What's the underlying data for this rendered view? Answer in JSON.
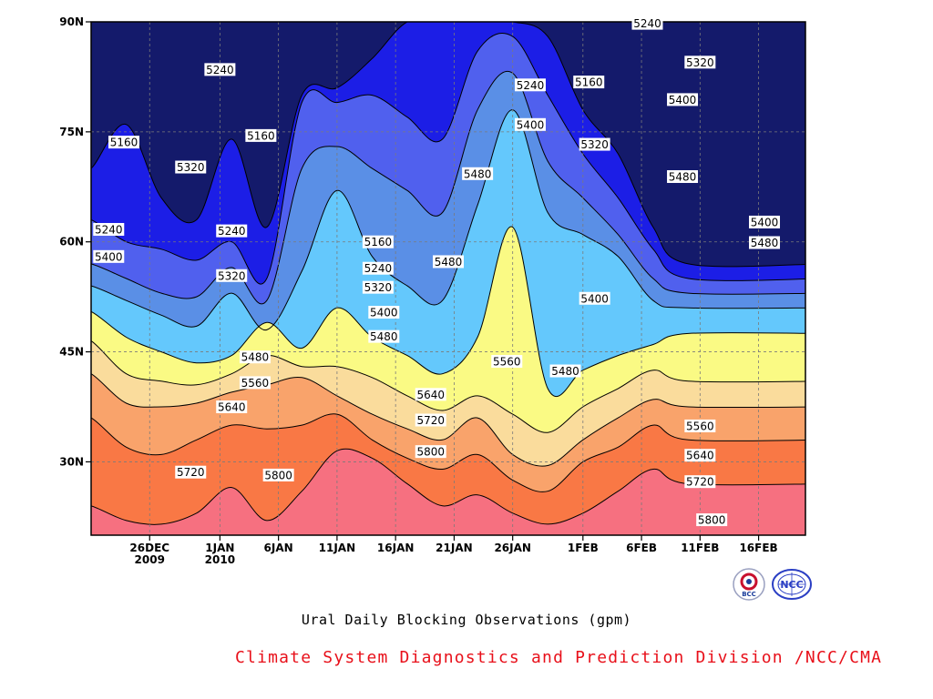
{
  "chart_data": {
    "type": "heatmap",
    "subtype": "filled contour (time-latitude)",
    "title": "Ural Daily Blocking Observations (gpm)",
    "xlabel": "",
    "ylabel": "",
    "x_range": [
      "2009-12-21",
      "2010-02-20"
    ],
    "ylim": [
      20,
      90
    ],
    "y_ticks": [
      "30N",
      "45N",
      "60N",
      "75N",
      "90N"
    ],
    "x_ticks": [
      {
        "label": "26DEC",
        "sub": "2009"
      },
      {
        "label": "1JAN",
        "sub": "2010"
      },
      {
        "label": "6JAN",
        "sub": ""
      },
      {
        "label": "11JAN",
        "sub": ""
      },
      {
        "label": "16JAN",
        "sub": ""
      },
      {
        "label": "21JAN",
        "sub": ""
      },
      {
        "label": "26JAN",
        "sub": ""
      },
      {
        "label": "1FEB",
        "sub": ""
      },
      {
        "label": "6FEB",
        "sub": ""
      },
      {
        "label": "11FEB",
        "sub": ""
      },
      {
        "label": "16FEB",
        "sub": ""
      }
    ],
    "contour_levels": [
      5160,
      5240,
      5320,
      5400,
      5480,
      5560,
      5640,
      5720,
      5800
    ],
    "level_colors": [
      "#141a6b",
      "#1c1ee6",
      "#5060ee",
      "#5a8fe6",
      "#64c8fc",
      "#fafa84",
      "#fadc9c",
      "#f9a36b",
      "#f97845",
      "#f67080"
    ],
    "grid": "dashed, major ticks",
    "contour_lines": [
      {
        "level": 5800,
        "latitudes": [
          24.0,
          22.0,
          21.5,
          23.0,
          26.5,
          22.0,
          26.0,
          31.5,
          30.5,
          27.0,
          24.0,
          25.5,
          23.0,
          21.5,
          23.0,
          26.0,
          29.0,
          27.0
        ]
      },
      {
        "level": 5720,
        "latitudes": [
          36.0,
          32.0,
          31.0,
          33.0,
          35.0,
          34.5,
          35.0,
          36.5,
          33.0,
          30.5,
          29.0,
          31.0,
          27.5,
          26.0,
          30.0,
          32.0,
          35.0,
          33.0
        ]
      },
      {
        "level": 5640,
        "latitudes": [
          42.0,
          38.0,
          37.5,
          38.0,
          39.5,
          40.5,
          41.5,
          39.0,
          36.5,
          34.5,
          33.0,
          36.0,
          31.0,
          29.5,
          33.0,
          36.0,
          38.5,
          37.5
        ]
      },
      {
        "level": 5560,
        "latitudes": [
          46.5,
          42.0,
          41.0,
          40.5,
          42.0,
          44.5,
          43.0,
          43.0,
          41.5,
          39.0,
          37.0,
          39.0,
          36.5,
          34.0,
          37.5,
          40.0,
          42.5,
          41.0
        ]
      },
      {
        "level": 5480,
        "latitudes": [
          50.5,
          47.0,
          45.0,
          43.5,
          44.5,
          49.0,
          45.5,
          51.0,
          47.0,
          44.5,
          42.0,
          47.0,
          62.0,
          40.0,
          42.5,
          44.5,
          46.0,
          47.5
        ]
      },
      {
        "level": 5400,
        "latitudes": [
          54.0,
          52.0,
          50.0,
          48.5,
          53.0,
          48.0,
          56.0,
          67.0,
          58.0,
          54.0,
          52.0,
          65.0,
          78.0,
          64.0,
          61.0,
          58.0,
          52.0,
          51.0
        ]
      },
      {
        "level": 5320,
        "latitudes": [
          57.0,
          55.0,
          53.0,
          52.5,
          56.5,
          52.0,
          70.0,
          73.0,
          70.0,
          67.0,
          64.0,
          78.0,
          83.0,
          71.0,
          66.0,
          61.0,
          55.0,
          53.0
        ]
      },
      {
        "level": 5240,
        "latitudes": [
          63.0,
          60.0,
          59.0,
          57.5,
          60.0,
          55.0,
          79.0,
          79.0,
          80.0,
          77.0,
          74.0,
          86.0,
          88.0,
          80.0,
          72.0,
          66.0,
          59.0,
          55.0
        ]
      },
      {
        "level": 5160,
        "latitudes": [
          70.0,
          76.0,
          66.0,
          63.0,
          74.0,
          62.0,
          80.0,
          81.0,
          85.0,
          90.0,
          90.0,
          90.0,
          90.0,
          88.0,
          78.0,
          72.0,
          62.0,
          57.0
        ]
      }
    ],
    "contour_x_days": [
      0,
      3,
      6,
      9,
      12,
      15,
      18,
      21,
      24,
      27,
      30,
      33,
      36,
      39,
      42,
      45,
      48,
      51
    ]
  },
  "contour_labels": [
    {
      "value": "5160",
      "date_offset": 2.8,
      "lat": 73.6
    },
    {
      "value": "5240",
      "date_offset": 1.5,
      "lat": 61.7
    },
    {
      "value": "5400",
      "date_offset": 1.5,
      "lat": 58.0
    },
    {
      "value": "5240",
      "date_offset": 11.0,
      "lat": 83.5
    },
    {
      "value": "5320",
      "date_offset": 8.5,
      "lat": 70.2
    },
    {
      "value": "5160",
      "date_offset": 14.5,
      "lat": 74.5
    },
    {
      "value": "5240",
      "date_offset": 12.0,
      "lat": 61.5
    },
    {
      "value": "5320",
      "date_offset": 12.0,
      "lat": 55.4
    },
    {
      "value": "5480",
      "date_offset": 14.0,
      "lat": 44.3
    },
    {
      "value": "5560",
      "date_offset": 14.0,
      "lat": 40.8
    },
    {
      "value": "5640",
      "date_offset": 12.0,
      "lat": 37.5
    },
    {
      "value": "5720",
      "date_offset": 8.5,
      "lat": 28.6
    },
    {
      "value": "5800",
      "date_offset": 16.0,
      "lat": 28.2
    },
    {
      "value": "5160",
      "date_offset": 24.5,
      "lat": 60.0
    },
    {
      "value": "5240",
      "date_offset": 24.5,
      "lat": 56.4
    },
    {
      "value": "5320",
      "date_offset": 24.5,
      "lat": 53.8
    },
    {
      "value": "5400",
      "date_offset": 25.0,
      "lat": 50.4
    },
    {
      "value": "5480",
      "date_offset": 25.0,
      "lat": 47.1
    },
    {
      "value": "5640",
      "date_offset": 29.0,
      "lat": 39.2
    },
    {
      "value": "5720",
      "date_offset": 29.0,
      "lat": 35.7
    },
    {
      "value": "5800",
      "date_offset": 29.0,
      "lat": 31.4
    },
    {
      "value": "5480",
      "date_offset": 33.0,
      "lat": 69.3
    },
    {
      "value": "5480",
      "date_offset": 30.5,
      "lat": 57.3
    },
    {
      "value": "5560",
      "date_offset": 35.5,
      "lat": 43.7
    },
    {
      "value": "5240",
      "date_offset": 37.5,
      "lat": 81.4
    },
    {
      "value": "5400",
      "date_offset": 37.5,
      "lat": 76.0
    },
    {
      "value": "5160",
      "date_offset": 42.5,
      "lat": 81.8
    },
    {
      "value": "5320",
      "date_offset": 43.0,
      "lat": 73.3
    },
    {
      "value": "5400",
      "date_offset": 43.0,
      "lat": 52.3
    },
    {
      "value": "5480",
      "date_offset": 40.5,
      "lat": 42.4
    },
    {
      "value": "5240",
      "date_offset": 47.5,
      "lat": 89.8
    },
    {
      "value": "5320",
      "date_offset": 52.0,
      "lat": 84.5
    },
    {
      "value": "5400",
      "date_offset": 50.5,
      "lat": 79.4
    },
    {
      "value": "5480",
      "date_offset": 50.5,
      "lat": 68.9
    },
    {
      "value": "5560",
      "date_offset": 52.0,
      "lat": 34.9
    },
    {
      "value": "5640",
      "date_offset": 52.0,
      "lat": 30.9
    },
    {
      "value": "5720",
      "date_offset": 52.0,
      "lat": 27.3
    },
    {
      "value": "5800",
      "date_offset": 53.0,
      "lat": 22.1
    },
    {
      "value": "5400",
      "date_offset": 57.5,
      "lat": 62.7
    },
    {
      "value": "5480",
      "date_offset": 57.5,
      "lat": 59.9
    }
  ],
  "footer": {
    "title": "Ural Daily Blocking Observations (gpm)",
    "credit": "Climate System Diagnostics and Prediction Division /NCC/CMA"
  },
  "logos": {
    "left": {
      "text": "BCC",
      "icon": "bcc-logo-icon"
    },
    "right": {
      "text": "NCC",
      "icon": "ncc-logo-icon"
    }
  }
}
